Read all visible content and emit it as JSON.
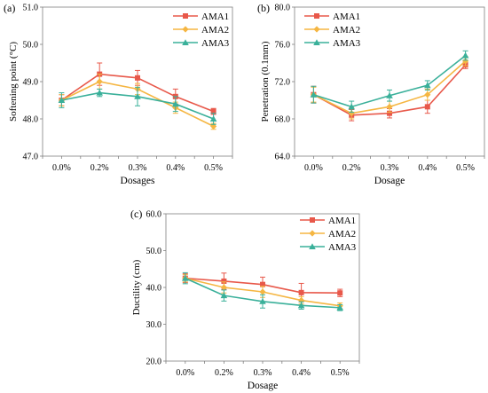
{
  "chart_data": [
    {
      "type": "line",
      "panel_label": "(a)",
      "categories": [
        "0.0%",
        "0.2%",
        "0.3%",
        "0.4%",
        "0.5%"
      ],
      "xlabel": "Dosages",
      "ylabel": "Softening point (°C)",
      "ylim": [
        47.0,
        51.0
      ],
      "yticks": [
        "47.0",
        "48.0",
        "49.0",
        "50.0",
        "51.0"
      ],
      "grid": false,
      "legend": "top-right",
      "series": [
        {
          "name": "AMA1",
          "color": "#e8584a",
          "marker": "square",
          "values": [
            48.5,
            49.2,
            49.1,
            48.6,
            48.2
          ],
          "errors": [
            0.15,
            0.3,
            0.2,
            0.2,
            0.08
          ]
        },
        {
          "name": "AMA2",
          "color": "#f5b642",
          "marker": "diamond",
          "values": [
            48.5,
            49.0,
            48.8,
            48.3,
            47.8
          ],
          "errors": [
            0.15,
            0.2,
            0.15,
            0.15,
            0.08
          ]
        },
        {
          "name": "AMA3",
          "color": "#3ab09a",
          "marker": "triangle",
          "values": [
            48.5,
            48.7,
            48.6,
            48.4,
            48.0
          ],
          "errors": [
            0.2,
            0.1,
            0.25,
            0.2,
            0.15
          ]
        }
      ]
    },
    {
      "type": "line",
      "panel_label": "(b)",
      "categories": [
        "0.0%",
        "0.2%",
        "0.3%",
        "0.4%",
        "0.5%"
      ],
      "xlabel": "Dosage",
      "ylabel": "Penetration (0.1mm)",
      "ylim": [
        64.0,
        80.0
      ],
      "yticks": [
        "64.0",
        "68.0",
        "72.0",
        "76.0",
        "80.0"
      ],
      "grid": false,
      "legend": "top-left",
      "series": [
        {
          "name": "AMA1",
          "color": "#e8584a",
          "marker": "square",
          "values": [
            70.6,
            68.4,
            68.6,
            69.3,
            73.8
          ],
          "errors": [
            0.9,
            0.6,
            0.5,
            0.7,
            0.4
          ]
        },
        {
          "name": "AMA2",
          "color": "#f5b642",
          "marker": "diamond",
          "values": [
            70.6,
            68.6,
            69.3,
            70.6,
            74.2
          ],
          "errors": [
            0.8,
            0.6,
            0.6,
            0.6,
            0.5
          ]
        },
        {
          "name": "AMA3",
          "color": "#3ab09a",
          "marker": "triangle",
          "values": [
            70.6,
            69.3,
            70.5,
            71.6,
            74.8
          ],
          "errors": [
            0.9,
            0.6,
            0.6,
            0.5,
            0.5
          ]
        }
      ]
    },
    {
      "type": "line",
      "panel_label": "(c)",
      "categories": [
        "0.0%",
        "0.2%",
        "0.3%",
        "0.4%",
        "0.5%"
      ],
      "xlabel": "Dosage",
      "ylabel": "Ductility (cm)",
      "ylim": [
        20.0,
        60.0
      ],
      "yticks": [
        "20.0",
        "30.0",
        "40.0",
        "50.0",
        "60.0"
      ],
      "grid": false,
      "legend": "top-right",
      "series": [
        {
          "name": "AMA1",
          "color": "#e8584a",
          "marker": "square",
          "values": [
            42.5,
            41.7,
            40.8,
            38.6,
            38.5
          ],
          "errors": [
            1.2,
            2.2,
            2.0,
            2.5,
            1.0
          ]
        },
        {
          "name": "AMA2",
          "color": "#f5b642",
          "marker": "diamond",
          "values": [
            42.5,
            40.0,
            38.8,
            36.5,
            35.0
          ],
          "errors": [
            1.0,
            1.5,
            1.5,
            1.0,
            0.8
          ]
        },
        {
          "name": "AMA3",
          "color": "#3ab09a",
          "marker": "triangle",
          "values": [
            42.5,
            37.8,
            36.2,
            35.1,
            34.5
          ],
          "errors": [
            1.5,
            1.5,
            1.8,
            1.0,
            0.8
          ]
        }
      ]
    }
  ]
}
